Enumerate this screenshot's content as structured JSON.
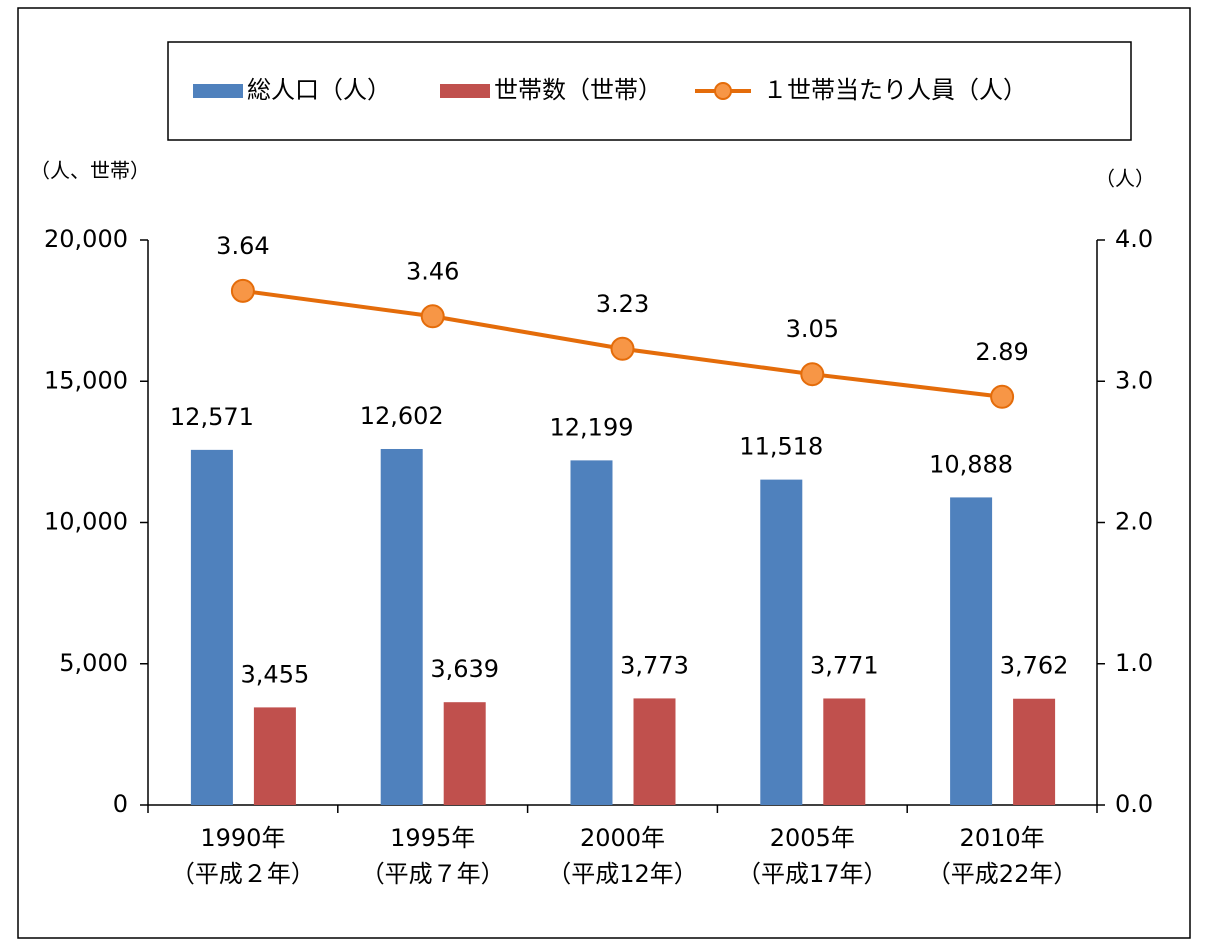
{
  "chart_data": {
    "type": "bar",
    "categories": [
      [
        "1990年",
        "（平成２年）"
      ],
      [
        "1995年",
        "（平成７年）"
      ],
      [
        "2000年",
        "（平成12年）"
      ],
      [
        "2005年",
        "（平成17年）"
      ],
      [
        "2010年",
        "（平成22年）"
      ]
    ],
    "y_label": "（人、世帯）",
    "y2_label": "（人）",
    "series": [
      {
        "name": "総人口（人）",
        "type": "bar",
        "color": "#4f81bd",
        "values": [
          12571,
          12602,
          12199,
          11518,
          10888
        ],
        "value_labels": [
          "12,571",
          "12,602",
          "12,199",
          "11,518",
          "10,888"
        ]
      },
      {
        "name": "世帯数（世帯）",
        "type": "bar",
        "color": "#c0504d",
        "values": [
          3455,
          3639,
          3773,
          3771,
          3762
        ],
        "value_labels": [
          "3,455",
          "3,639",
          "3,773",
          "3,771",
          "3,762"
        ]
      },
      {
        "name": "１世帯当たり人員（人）",
        "type": "line",
        "axis": "y2",
        "color": "#e46c0a",
        "marker_color": "#f79646",
        "values": [
          3.64,
          3.46,
          3.23,
          3.05,
          2.89
        ]
      }
    ],
    "ylim": [
      0,
      20000
    ],
    "yticks": [
      0,
      {
        "value": 5000,
        "label": "5,000"
      },
      {
        "value": 10000,
        "label": "10,000"
      },
      {
        "value": 15000,
        "label": "15,000"
      },
      {
        "value": 20000,
        "label": "20,000"
      }
    ],
    "y2lim": [
      0,
      4
    ],
    "y2ticks": [
      {
        "value": 0,
        "label": "0.0"
      },
      {
        "value": 1,
        "label": "1.0"
      },
      {
        "value": 2,
        "label": "2.0"
      },
      {
        "value": 3,
        "label": "3.0"
      },
      {
        "value": 4,
        "label": "4.0"
      }
    ],
    "legend": "top"
  }
}
